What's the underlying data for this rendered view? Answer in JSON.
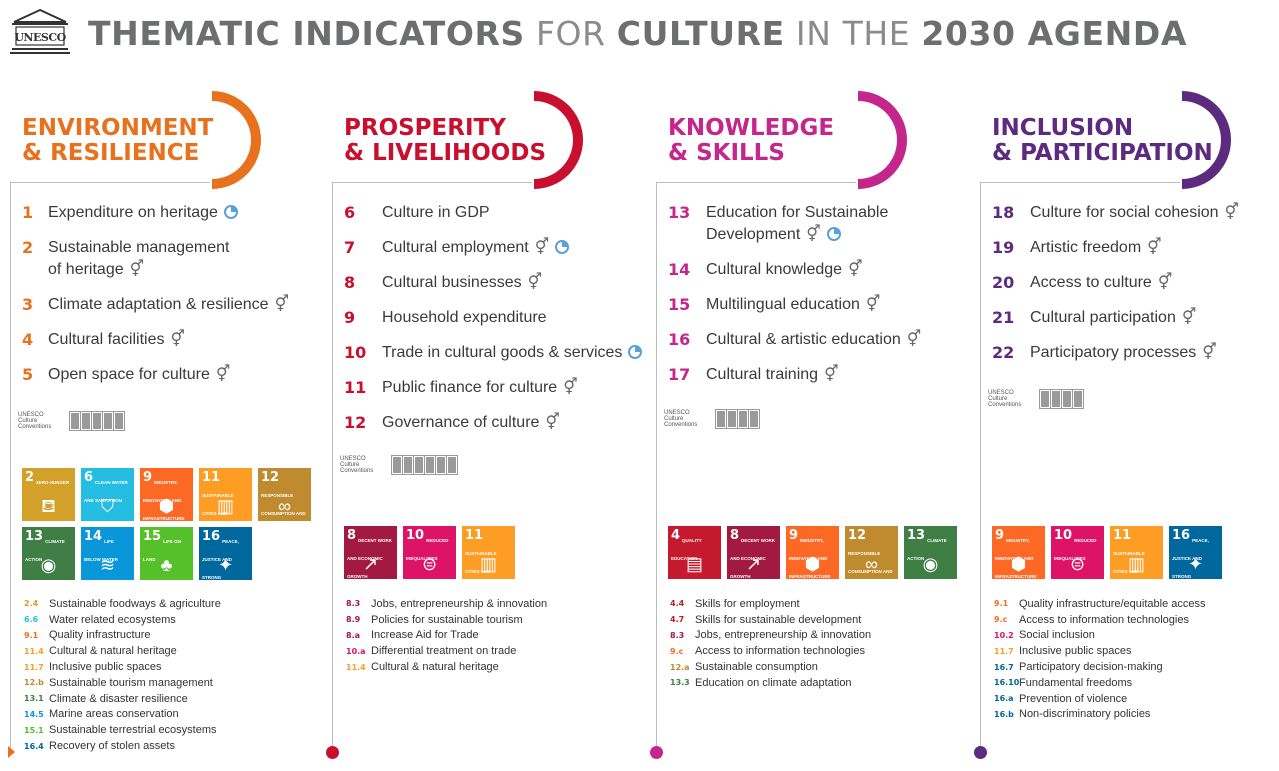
{
  "header": {
    "logo_text": "UNESCO",
    "title_parts": [
      {
        "text": "THEMATIC INDICATORS",
        "style": "b"
      },
      {
        "text": " FOR ",
        "style": "l"
      },
      {
        "text": "CULTURE",
        "style": "b"
      },
      {
        "text": " IN THE ",
        "style": "l"
      },
      {
        "text": "2030 AGENDA",
        "style": "b"
      }
    ]
  },
  "convention_label": "UNESCO Culture Conventions",
  "colors": {
    "environment": "#e8711e",
    "prosperity": "#c8102e",
    "knowledge": "#c4268c",
    "inclusion": "#5c2a7e",
    "clock": "#5aa0d6"
  },
  "columns": [
    {
      "key": "environment",
      "heading_line1": "ENVIRONMENT",
      "heading_line2": "& RESILIENCE",
      "convention_boxes": 5,
      "indicators": [
        {
          "num": "1",
          "label": "Expenditure on heritage",
          "gender": false,
          "clock": true
        },
        {
          "num": "2",
          "label": "Sustainable management",
          "label2": "of heritage",
          "gender": true,
          "clock": false
        },
        {
          "num": "3",
          "label": "Climate adaptation & resilience",
          "gender": true,
          "clock": false
        },
        {
          "num": "4",
          "label": "Cultural facilities",
          "gender": true,
          "clock": false
        },
        {
          "num": "5",
          "label": "Open space for culture",
          "gender": true,
          "clock": false
        }
      ],
      "sdgs": [
        {
          "num": "2",
          "title": "Zero hunger",
          "color": "#d3a029",
          "glyph": "⛾"
        },
        {
          "num": "6",
          "title": "Clean water and sanitation",
          "color": "#26bde2",
          "glyph": "⛉"
        },
        {
          "num": "9",
          "title": "Industry, innovation and infrastructure",
          "color": "#fd6925",
          "glyph": "⬢"
        },
        {
          "num": "11",
          "title": "Sustainable cities and communities",
          "color": "#fd9d24",
          "glyph": "▥"
        },
        {
          "num": "12",
          "title": "Responsible consumption and production",
          "color": "#bf8b2e",
          "glyph": "∞"
        },
        {
          "num": "13",
          "title": "Climate action",
          "color": "#3f7e44",
          "glyph": "◉"
        },
        {
          "num": "14",
          "title": "Life below water",
          "color": "#0a97d9",
          "glyph": "≋"
        },
        {
          "num": "15",
          "title": "Life on land",
          "color": "#56c02b",
          "glyph": "♣"
        },
        {
          "num": "16",
          "title": "Peace, justice and strong institutions",
          "color": "#00689d",
          "glyph": "✦"
        }
      ],
      "targets": [
        {
          "code": "2.4",
          "text": "Sustainable foodways & agriculture",
          "color": "#d3a029"
        },
        {
          "code": "6.6",
          "text": "Water related ecosystems",
          "color": "#26bde2"
        },
        {
          "code": "9.1",
          "text": "Quality infrastructure",
          "color": "#fd6925"
        },
        {
          "code": "11.4",
          "text": "Cultural & natural heritage",
          "color": "#fd9d24"
        },
        {
          "code": "11.7",
          "text": "Inclusive public spaces",
          "color": "#fd9d24"
        },
        {
          "code": "12.b",
          "text": "Sustainable tourism management",
          "color": "#bf8b2e"
        },
        {
          "code": "13.1",
          "text": "Climate & disaster resilience",
          "color": "#3f7e44"
        },
        {
          "code": "14.5",
          "text": "Marine areas conservation",
          "color": "#0a97d9"
        },
        {
          "code": "15.1",
          "text": "Sustainable terrestrial ecosystems",
          "color": "#56c02b"
        },
        {
          "code": "16.4",
          "text": "Recovery of stolen assets",
          "color": "#00689d"
        }
      ]
    },
    {
      "key": "prosperity",
      "heading_line1": "PROSPERITY",
      "heading_line2": "& LIVELIHOODS",
      "convention_boxes": 6,
      "indicators": [
        {
          "num": "6",
          "label": "Culture in GDP",
          "gender": false,
          "clock": false
        },
        {
          "num": "7",
          "label": "Cultural employment",
          "gender": true,
          "clock": true
        },
        {
          "num": "8",
          "label": "Cultural businesses",
          "gender": true,
          "clock": false
        },
        {
          "num": "9",
          "label": "Household expenditure",
          "gender": false,
          "clock": false
        },
        {
          "num": "10",
          "label": "Trade in cultural goods & services",
          "gender": false,
          "clock": true
        },
        {
          "num": "11",
          "label": "Public finance for culture",
          "gender": true,
          "clock": false
        },
        {
          "num": "12",
          "label": "Governance of culture",
          "gender": true,
          "clock": false
        }
      ],
      "sdgs": [
        {
          "num": "8",
          "title": "Decent work and economic growth",
          "color": "#a21942",
          "glyph": "↗"
        },
        {
          "num": "10",
          "title": "Reduced inequalities",
          "color": "#dd1367",
          "glyph": "⊜"
        },
        {
          "num": "11",
          "title": "Sustainable cities and communities",
          "color": "#fd9d24",
          "glyph": "▥"
        }
      ],
      "targets": [
        {
          "code": "8.3",
          "text": "Jobs, entrepreneurship & innovation",
          "color": "#a21942"
        },
        {
          "code": "8.9",
          "text": "Policies for sustainable tourism",
          "color": "#a21942"
        },
        {
          "code": "8.a",
          "text": "Increase Aid for Trade",
          "color": "#a21942"
        },
        {
          "code": "10.a",
          "text": "Differential treatment on trade",
          "color": "#dd1367"
        },
        {
          "code": "11.4",
          "text": "Cultural & natural heritage",
          "color": "#fd9d24"
        }
      ]
    },
    {
      "key": "knowledge",
      "heading_line1": "KNOWLEDGE",
      "heading_line2": "& SKILLS",
      "convention_boxes": 4,
      "indicators": [
        {
          "num": "13",
          "label": "Education for Sustainable",
          "label2": "Development",
          "gender": true,
          "clock": true
        },
        {
          "num": "14",
          "label": "Cultural knowledge",
          "gender": true,
          "clock": false
        },
        {
          "num": "15",
          "label": "Multilingual education",
          "gender": true,
          "clock": false
        },
        {
          "num": "16",
          "label": "Cultural & artistic education",
          "gender": true,
          "clock": false
        },
        {
          "num": "17",
          "label": "Cultural training",
          "gender": true,
          "clock": false
        }
      ],
      "sdgs": [
        {
          "num": "4",
          "title": "Quality education",
          "color": "#c5192d",
          "glyph": "▤"
        },
        {
          "num": "8",
          "title": "Decent work and economic growth",
          "color": "#a21942",
          "glyph": "↗"
        },
        {
          "num": "9",
          "title": "Industry, innovation and infrastructure",
          "color": "#fd6925",
          "glyph": "⬢"
        },
        {
          "num": "12",
          "title": "Responsible consumption and production",
          "color": "#bf8b2e",
          "glyph": "∞"
        },
        {
          "num": "13",
          "title": "Climate action",
          "color": "#3f7e44",
          "glyph": "◉"
        }
      ],
      "targets": [
        {
          "code": "4.4",
          "text": "Skills for employment",
          "color": "#c5192d"
        },
        {
          "code": "4.7",
          "text": "Skills for sustainable development",
          "color": "#c5192d"
        },
        {
          "code": "8.3",
          "text": "Jobs, entrepreneurship & innovation",
          "color": "#a21942"
        },
        {
          "code": "9.c",
          "text": "Access to information technologies",
          "color": "#fd6925"
        },
        {
          "code": "12.a",
          "text": "Sustainable consumption",
          "color": "#bf8b2e"
        },
        {
          "code": "13.3",
          "text": "Education on climate adaptation",
          "color": "#3f7e44"
        }
      ]
    },
    {
      "key": "inclusion",
      "heading_line1": "INCLUSION",
      "heading_line2": "& PARTICIPATION",
      "convention_boxes": 4,
      "indicators": [
        {
          "num": "18",
          "label": "Culture for social cohesion",
          "gender": true,
          "clock": false
        },
        {
          "num": "19",
          "label": "Artistic freedom",
          "gender": true,
          "clock": false
        },
        {
          "num": "20",
          "label": "Access to culture",
          "gender": true,
          "clock": false
        },
        {
          "num": "21",
          "label": "Cultural participation",
          "gender": true,
          "clock": false
        },
        {
          "num": "22",
          "label": "Participatory processes",
          "gender": true,
          "clock": false
        }
      ],
      "sdgs": [
        {
          "num": "9",
          "title": "Industry, innovation and infrastructure",
          "color": "#fd6925",
          "glyph": "⬢"
        },
        {
          "num": "10",
          "title": "Reduced inequalities",
          "color": "#dd1367",
          "glyph": "⊜"
        },
        {
          "num": "11",
          "title": "Sustainable cities and communities",
          "color": "#fd9d24",
          "glyph": "▥"
        },
        {
          "num": "16",
          "title": "Peace, justice and strong institutions",
          "color": "#00689d",
          "glyph": "✦"
        }
      ],
      "targets": [
        {
          "code": "9.1",
          "text": "Quality infrastructure/equitable access",
          "color": "#fd6925"
        },
        {
          "code": "9.c",
          "text": "Access to information technologies",
          "color": "#fd6925"
        },
        {
          "code": "10.2",
          "text": "Social inclusion",
          "color": "#dd1367"
        },
        {
          "code": "11.7",
          "text": "Inclusive public spaces",
          "color": "#fd9d24"
        },
        {
          "code": "16.7",
          "text": "Participatory decision-making",
          "color": "#00689d"
        },
        {
          "code": "16.10",
          "text": "Fundamental freedoms",
          "color": "#00689d"
        },
        {
          "code": "16.a",
          "text": "Prevention of violence",
          "color": "#00689d"
        },
        {
          "code": "16.b",
          "text": "Non-discriminatory policies",
          "color": "#00689d"
        }
      ]
    }
  ]
}
